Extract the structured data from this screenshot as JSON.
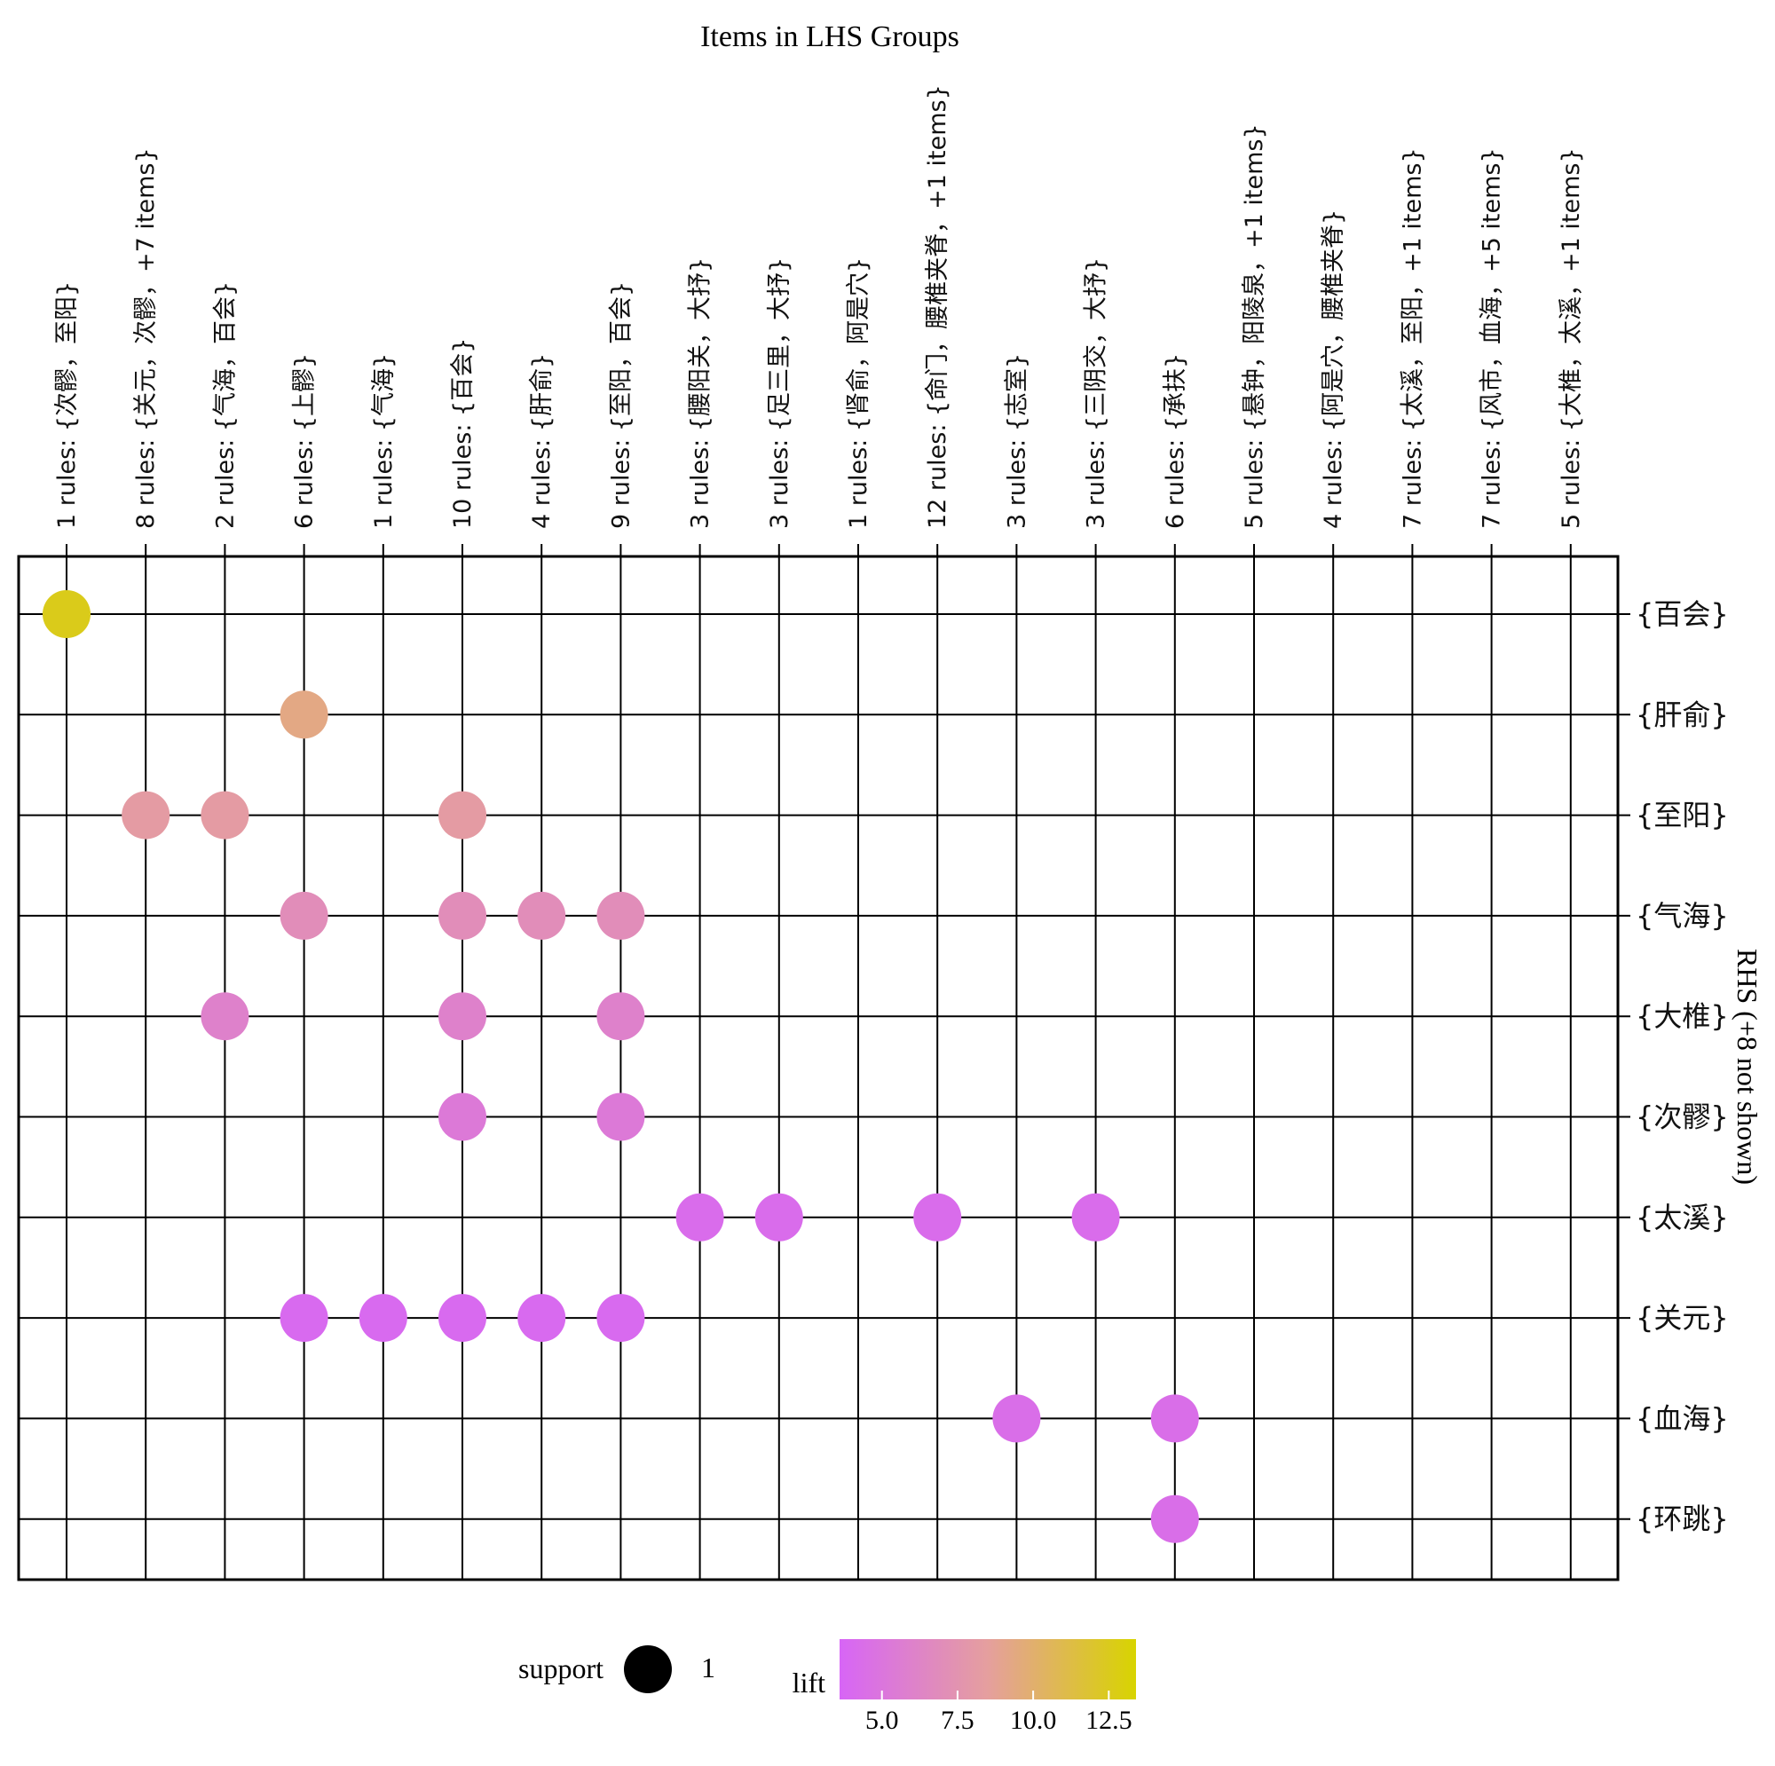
{
  "chart_data": {
    "type": "scatter",
    "title": "Items in LHS Groups",
    "ylabel": "RHS (+8 not shown)",
    "columns": [
      "1 rules: {次髎，至阳}",
      "8 rules: {关元，次髎，+7 items}",
      "2 rules: {气海，百会}",
      "6 rules: {上髎}",
      "1 rules: {气海}",
      "10 rules: {百会}",
      "4 rules: {肝俞}",
      "9 rules: {至阳，百会}",
      "3 rules: {腰阳关，大抒}",
      "3 rules: {足三里，大抒}",
      "1 rules: {肾俞，阿是穴}",
      "12 rules: {命门，腰椎夹脊，+1 items}",
      "3 rules: {志室}",
      "3 rules: {三阴交，大抒}",
      "6 rules: {承扶}",
      "5 rules: {悬钟，阳陵泉，+1 items}",
      "4 rules: {阿是穴，腰椎夹脊}",
      "7 rules: {太溪，至阳，+1 items}",
      "7 rules: {风市，血海，+5 items}",
      "5 rules: {大椎，太溪，+1 items}"
    ],
    "rows": [
      "{百会}",
      "{肝俞}",
      "{至阳}",
      "{气海}",
      "{大椎}",
      "{次髎}",
      "{太溪}",
      "{关元}",
      "{血海}",
      "{环跳}"
    ],
    "points": [
      {
        "col": 0,
        "row": 0,
        "lift": 12.6,
        "support": 1
      },
      {
        "col": 3,
        "row": 1,
        "lift": 9.3,
        "support": 1
      },
      {
        "col": 1,
        "row": 2,
        "lift": 8.2,
        "support": 1
      },
      {
        "col": 2,
        "row": 2,
        "lift": 8.2,
        "support": 1
      },
      {
        "col": 5,
        "row": 2,
        "lift": 8.2,
        "support": 1
      },
      {
        "col": 3,
        "row": 3,
        "lift": 7.0,
        "support": 1
      },
      {
        "col": 5,
        "row": 3,
        "lift": 7.0,
        "support": 1
      },
      {
        "col": 6,
        "row": 3,
        "lift": 7.0,
        "support": 1
      },
      {
        "col": 7,
        "row": 3,
        "lift": 7.0,
        "support": 1
      },
      {
        "col": 2,
        "row": 4,
        "lift": 6.0,
        "support": 1
      },
      {
        "col": 5,
        "row": 4,
        "lift": 6.0,
        "support": 1
      },
      {
        "col": 7,
        "row": 4,
        "lift": 6.0,
        "support": 1
      },
      {
        "col": 5,
        "row": 5,
        "lift": 5.3,
        "support": 1
      },
      {
        "col": 7,
        "row": 5,
        "lift": 5.3,
        "support": 1
      },
      {
        "col": 8,
        "row": 6,
        "lift": 4.2,
        "support": 1
      },
      {
        "col": 9,
        "row": 6,
        "lift": 4.2,
        "support": 1
      },
      {
        "col": 11,
        "row": 6,
        "lift": 4.2,
        "support": 1
      },
      {
        "col": 13,
        "row": 6,
        "lift": 4.2,
        "support": 1
      },
      {
        "col": 3,
        "row": 7,
        "lift": 4.0,
        "support": 1
      },
      {
        "col": 4,
        "row": 7,
        "lift": 4.0,
        "support": 1
      },
      {
        "col": 5,
        "row": 7,
        "lift": 4.0,
        "support": 1
      },
      {
        "col": 6,
        "row": 7,
        "lift": 4.0,
        "support": 1
      },
      {
        "col": 7,
        "row": 7,
        "lift": 4.0,
        "support": 1
      },
      {
        "col": 12,
        "row": 8,
        "lift": 4.4,
        "support": 1
      },
      {
        "col": 14,
        "row": 8,
        "lift": 4.4,
        "support": 1
      },
      {
        "col": 14,
        "row": 9,
        "lift": 4.4,
        "support": 1
      }
    ],
    "legend": {
      "support_title": "support",
      "support_value": "1",
      "lift_title": "lift",
      "lift_ticks": [
        "5.0",
        "7.5",
        "10.0",
        "12.5"
      ],
      "lift_tick_values": [
        5.0,
        7.5,
        10.0,
        12.5
      ],
      "lift_range": [
        3.6,
        13.4
      ],
      "color_low": "#d765f6",
      "color_mid": "#e59f9e",
      "color_high": "#d8d400"
    }
  }
}
